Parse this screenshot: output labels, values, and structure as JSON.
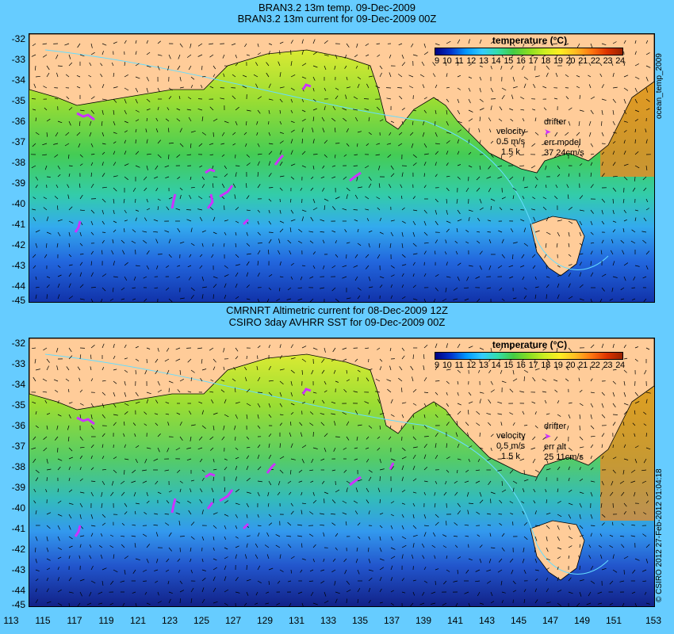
{
  "top": {
    "title1": "BRAN3.2 13m temp. 09-Dec-2009",
    "title2": "BRAN3.2 13m current for 09-Dec-2009 00Z",
    "legend_title": "temperature (°C)",
    "velocity_label": "velocity",
    "velocity_value": "0.5 m/s",
    "velocity_sub": "1.5 k",
    "drifter_label": "drifter",
    "err_label": "err model",
    "err_value": "37 24cm/s",
    "side_text": "ocean_temp_2009"
  },
  "bottom": {
    "title1": "CMRNRT Altimetric current for 08-Dec-2009 12Z",
    "title2": "CSIRO 3day AVHRR SST for 09-Dec-2009 00Z",
    "legend_title": "temperature (°C)",
    "velocity_label": "velocity",
    "velocity_value": "0.5 m/s",
    "velocity_sub": "1.5 k",
    "drifter_label": "drifter",
    "err_label": "err alt",
    "err_value": "25 11cm/s",
    "side_text": "© CSIRO 2012   27-Feb-2012 01:04:18"
  },
  "colorbar_ticks": [
    "9",
    "10",
    "11",
    "12",
    "13",
    "14",
    "15",
    "16",
    "17",
    "18",
    "19",
    "20",
    "21",
    "22",
    "23",
    "24"
  ],
  "lat_labels": [
    "-32",
    "-33",
    "-34",
    "-35",
    "-36",
    "-37",
    "-38",
    "-39",
    "-40",
    "-41",
    "-42",
    "-43",
    "-44",
    "-45"
  ],
  "lon_labels": [
    "113",
    "115",
    "117",
    "119",
    "121",
    "123",
    "125",
    "127",
    "129",
    "131",
    "133",
    "135",
    "137",
    "139",
    "141",
    "143",
    "145",
    "147",
    "149",
    "151",
    "153"
  ],
  "colors": {
    "land": "#ffcc99",
    "background": "#66ccff",
    "drifter": "#cc33ff"
  }
}
